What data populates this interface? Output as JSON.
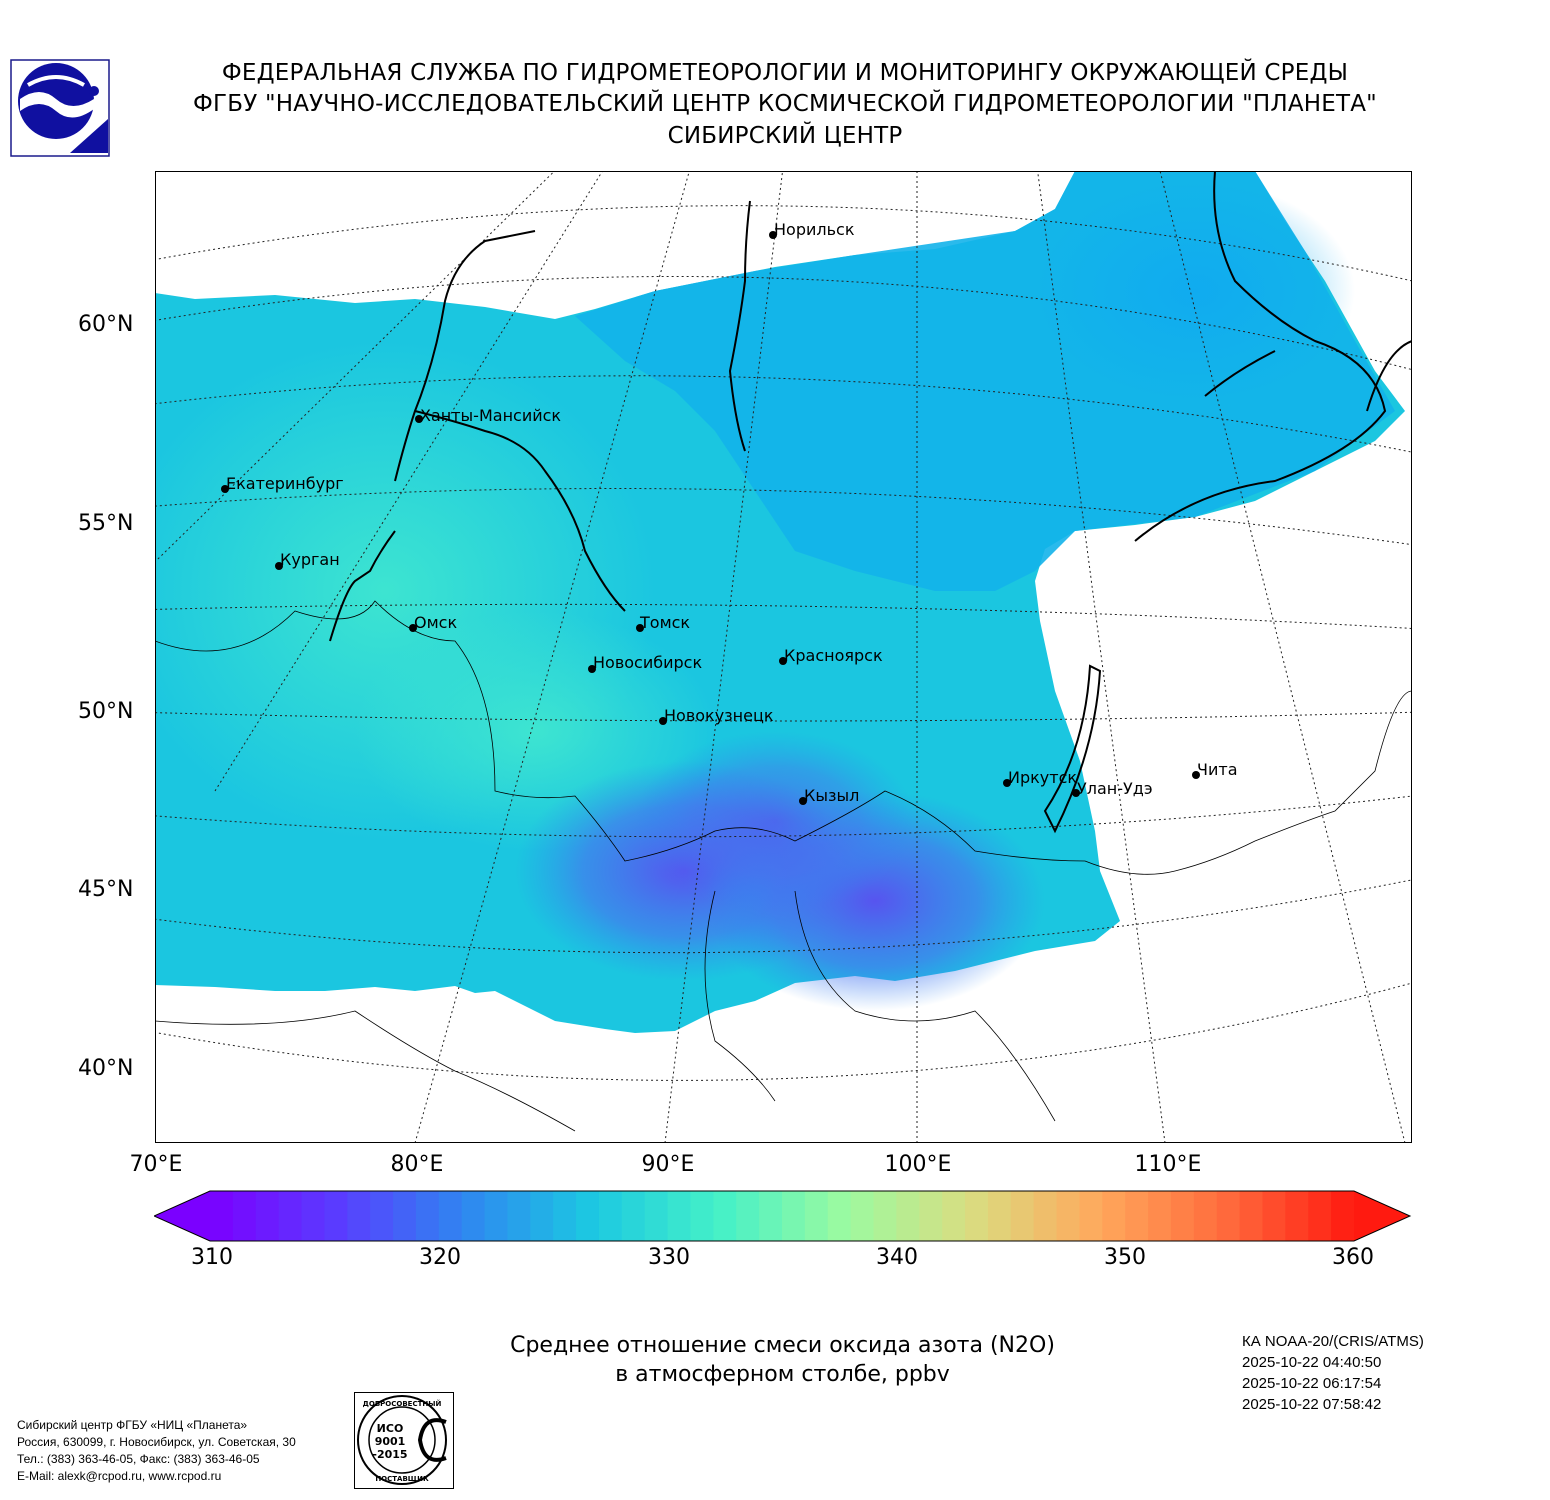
{
  "header": {
    "line1": "ФЕДЕРАЛЬНАЯ СЛУЖБА ПО ГИДРОМЕТЕОРОЛОГИИ И МОНИТОРИНГУ ОКРУЖАЮЩЕЙ СРЕДЫ",
    "line2": "ФГБУ \"НАУЧНО-ИССЛЕДОВАТЕЛЬСКИЙ ЦЕНТР КОСМИЧЕСКОЙ ГИДРОМЕТЕОРОЛОГИИ \"ПЛАНЕТА\"",
    "line3": "СИБИРСКИЙ ЦЕНТР"
  },
  "map": {
    "lat_labels": [
      "60°N",
      "55°N",
      "50°N",
      "45°N",
      "40°N"
    ],
    "lon_labels": [
      "70°E",
      "80°E",
      "90°E",
      "100°E",
      "110°E"
    ],
    "cities": [
      {
        "name": "Норильск"
      },
      {
        "name": "Ханты-Мансийск"
      },
      {
        "name": "Екатеринбург"
      },
      {
        "name": "Курган"
      },
      {
        "name": "Омск"
      },
      {
        "name": "Томск"
      },
      {
        "name": "Новосибирск"
      },
      {
        "name": "Красноярск"
      },
      {
        "name": "Новокузнецк"
      },
      {
        "name": "Иркутск"
      },
      {
        "name": "Улан-Удэ"
      },
      {
        "name": "Чита"
      },
      {
        "name": "Кызыл"
      }
    ]
  },
  "colorbar": {
    "min": 310,
    "max": 360,
    "ticks": [
      "310",
      "320",
      "330",
      "340",
      "350",
      "360"
    ],
    "colors": [
      "#7b00ff",
      "#5a3cff",
      "#2f86f0",
      "#1cc8e2",
      "#44f0c8",
      "#9cfaa0",
      "#dadc80",
      "#ffa85c",
      "#ff6a3c",
      "#ff1a10"
    ]
  },
  "title": {
    "line1": "Среднее отношение смеси оксида азота (N2O)",
    "line2": "в атмосферном столбе, ppbv"
  },
  "satellite": {
    "name": "КА NOAA-20/(CRIS/ATMS)",
    "times": [
      "2025-10-22 04:40:50",
      "2025-10-22 06:17:54",
      "2025-10-22 07:58:42"
    ]
  },
  "footer": {
    "line1": "Сибирский центр ФГБУ «НИЦ «Планета»",
    "line2": "Россия, 630099, г. Новосибирск, ул. Советская, 30",
    "line3": "Тел.: (383) 363-46-05, Факс: (383) 363-46-05",
    "line4": "E-Mail: alexk@rcpod.ru, www.rcpod.ru"
  },
  "iso_badge": {
    "top": "ДОБРОСОВЕСТНЫЙ",
    "l1": "ИСО",
    "l2": "9001",
    "l3": "-2015",
    "bottom": "ПОСТАВЩИК"
  }
}
